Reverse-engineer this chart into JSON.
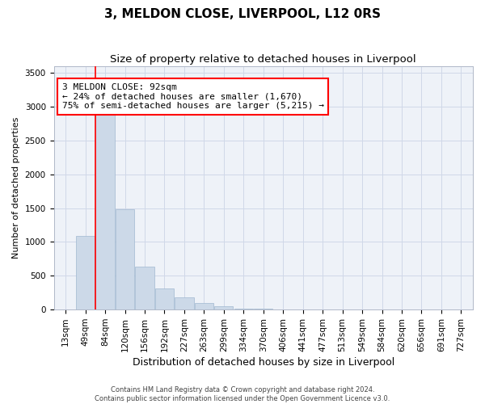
{
  "title": "3, MELDON CLOSE, LIVERPOOL, L12 0RS",
  "subtitle": "Size of property relative to detached houses in Liverpool",
  "xlabel": "Distribution of detached houses by size in Liverpool",
  "ylabel": "Number of detached properties",
  "footnote": "Contains HM Land Registry data © Crown copyright and database right 2024.\nContains public sector information licensed under the Open Government Licence v3.0.",
  "categories": [
    "13sqm",
    "49sqm",
    "84sqm",
    "120sqm",
    "156sqm",
    "192sqm",
    "227sqm",
    "263sqm",
    "299sqm",
    "334sqm",
    "370sqm",
    "406sqm",
    "441sqm",
    "477sqm",
    "513sqm",
    "549sqm",
    "584sqm",
    "620sqm",
    "656sqm",
    "691sqm",
    "727sqm"
  ],
  "values": [
    5,
    1090,
    2900,
    1480,
    640,
    310,
    185,
    95,
    45,
    18,
    9,
    6,
    4,
    3,
    2,
    2,
    1,
    1,
    1,
    0,
    0
  ],
  "bar_color": "#ccd9e8",
  "bar_edge_color": "#a0b8d0",
  "red_line_index": 2,
  "annotation_text": "3 MELDON CLOSE: 92sqm\n← 24% of detached houses are smaller (1,670)\n75% of semi-detached houses are larger (5,215) →",
  "ylim": [
    0,
    3600
  ],
  "yticks": [
    0,
    500,
    1000,
    1500,
    2000,
    2500,
    3000,
    3500
  ],
  "grid_color": "#d0d8e8",
  "background_color": "#eef2f8",
  "title_fontsize": 11,
  "subtitle_fontsize": 9.5,
  "xlabel_fontsize": 9,
  "ylabel_fontsize": 8,
  "tick_fontsize": 7.5,
  "annot_fontsize": 8,
  "footnote_fontsize": 6
}
